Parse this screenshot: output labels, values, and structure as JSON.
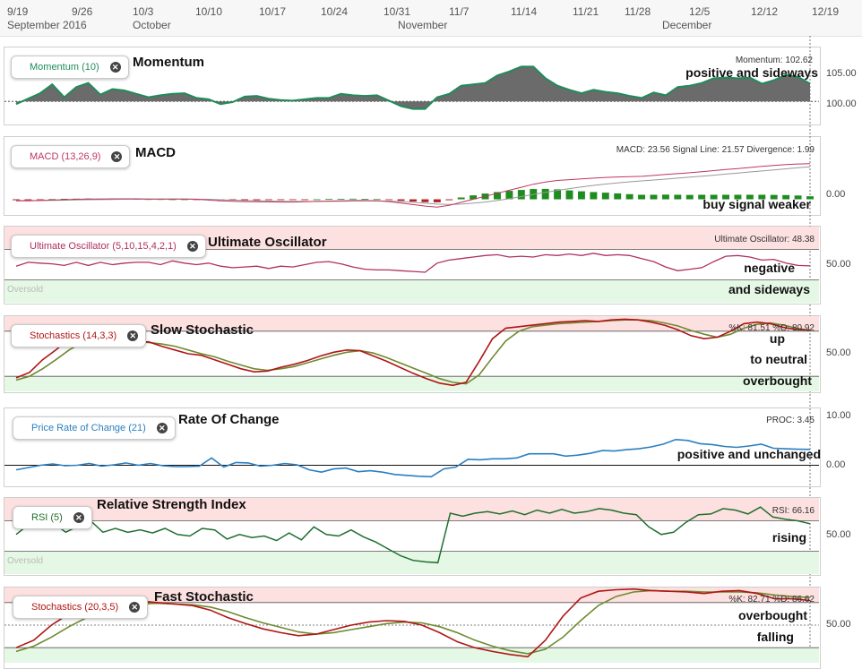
{
  "time_axis": {
    "dates": [
      "9/19",
      "9/26",
      "10/3",
      "10/10",
      "10/17",
      "10/24",
      "10/31",
      "11/7",
      "11/14",
      "11/21",
      "11/28",
      "12/5",
      "12/12",
      "12/19"
    ],
    "months": [
      "September 2016",
      "October",
      "November",
      "December"
    ]
  },
  "colors": {
    "momentum_fill": "#6b6b6b",
    "momentum_line": "#1f8c5a",
    "macd_line": "#c0365f",
    "signal_line": "#999999",
    "hist_neg": "#b22222",
    "hist_pos": "#1e8c1e",
    "uo_line": "#b03060",
    "stoch_k": "#b01515",
    "stoch_d": "#6f8a2f",
    "roc_line": "#2a7fc1",
    "rsi_line": "#1f6e2f",
    "overbought_zone": "#fde0e0",
    "oversold_zone": "#e5f8e5"
  },
  "panels": [
    {
      "id": "momentum",
      "pill": "Momentum (10)",
      "title": "Momentum",
      "readout": "Momentum: 102.62",
      "notes": [
        "positive and sideways"
      ],
      "ylabels": [
        "105.00",
        "100.00"
      ]
    },
    {
      "id": "macd",
      "pill": "MACD (13,26,9)",
      "title": "MACD",
      "readout": "MACD: 23.56 Signal Line: 21.57 Divergence: 1.99",
      "notes": [
        "buy signal weaker"
      ],
      "ylabels": [
        "0.00"
      ]
    },
    {
      "id": "uo",
      "pill": "Ultimate Oscillator (5,10,15,4,2,1)",
      "title": "Ultimate Oscillator",
      "readout": "Ultimate Oscillator: 48.38",
      "notes": [
        "negative",
        "and sideways"
      ],
      "ylabels": [
        "50.00"
      ],
      "zone_label": "Oversold"
    },
    {
      "id": "slowstoch",
      "pill": "Stochastics (14,3,3)",
      "title": "Slow Stochastic",
      "readout": "%K: 81.51 %D: 80.92",
      "notes": [
        "up",
        "to neutral",
        "overbought"
      ],
      "ylabels": [
        "50.00"
      ]
    },
    {
      "id": "roc",
      "pill": "Price Rate of Change (21)",
      "title": "Rate Of Change",
      "readout": "PROC: 3.45",
      "notes": [
        "positive and unchanged"
      ],
      "ylabels": [
        "10.00",
        "0.00"
      ]
    },
    {
      "id": "rsi",
      "pill": "RSI (5)",
      "title": "Relative Strength Index",
      "readout": "RSI: 66.16",
      "notes": [
        "rising"
      ],
      "ylabels": [
        "50.00"
      ],
      "zone_label": "Oversold"
    },
    {
      "id": "faststoch",
      "pill": "Stochastics (20,3,5)",
      "title": "Fast Stochastic",
      "readout": "%K: 82.71 %D: 86.62",
      "notes": [
        "overbought",
        "falling"
      ],
      "ylabels": [
        "50.00"
      ]
    }
  ],
  "chart_data": [
    {
      "type": "area",
      "name": "momentum",
      "ylim": [
        97,
        107
      ],
      "baseline": 100,
      "values": [
        99.6,
        100.4,
        101.2,
        102.5,
        100.6,
        102.1,
        102.7,
        101.0,
        101.8,
        101.6,
        101.1,
        100.6,
        100.9,
        101.1,
        101.2,
        100.5,
        100.3,
        99.6,
        99.9,
        100.7,
        100.8,
        100.4,
        100.2,
        100.1,
        100.3,
        100.5,
        100.5,
        101.1,
        100.9,
        100.8,
        100.9,
        100.1,
        99.3,
        98.9,
        98.9,
        100.6,
        101.1,
        102.3,
        102.5,
        102.7,
        103.8,
        104.4,
        105.1,
        105.1,
        103.4,
        102.3,
        101.7,
        101.2,
        101.7,
        101.4,
        101.2,
        100.8,
        100.5,
        101.3,
        100.9,
        102.1,
        102.3,
        102.7,
        103.4,
        103.5,
        103.4,
        103.5,
        102.6,
        103.1,
        103.9,
        103.6,
        102.6
      ]
    },
    {
      "type": "line",
      "name": "macd",
      "ylim": [
        -8,
        30
      ],
      "macd": [
        -1,
        -1,
        -0.8,
        -0.5,
        -0.3,
        0,
        0.2,
        0.2,
        0.3,
        0.3,
        0.3,
        0.2,
        0.2,
        0.2,
        0.2,
        0,
        -0.5,
        -1,
        -1.3,
        -1.5,
        -1.6,
        -1.7,
        -1.8,
        -1.8,
        -1.6,
        -1.4,
        -1.2,
        -1.0,
        -0.8,
        -0.8,
        -1.0,
        -1.5,
        -2.5,
        -3.5,
        -4.5,
        -5.2,
        -4,
        -2,
        0,
        2,
        4,
        6,
        8,
        10,
        11.5,
        12.5,
        13,
        13.5,
        14,
        14.5,
        14.8,
        15,
        15.2,
        15.8,
        16.5,
        17,
        17.6,
        18.3,
        19,
        19.7,
        20.4,
        21.1,
        21.8,
        22.4,
        23,
        23.4,
        23.56
      ],
      "signal": [
        -0.8,
        -0.8,
        -0.8,
        -0.7,
        -0.6,
        -0.4,
        -0.3,
        -0.2,
        -0.1,
        0,
        0.1,
        0.1,
        0.1,
        0.2,
        0.2,
        0.1,
        0,
        -0.3,
        -0.6,
        -0.8,
        -1,
        -1.2,
        -1.3,
        -1.4,
        -1.4,
        -1.4,
        -1.4,
        -1.3,
        -1.2,
        -1.1,
        -1.1,
        -1.2,
        -1.5,
        -2,
        -2.6,
        -3.2,
        -3.4,
        -3.2,
        -2.6,
        -1.8,
        -0.8,
        0.4,
        1.8,
        3.2,
        4.6,
        5.9,
        7.1,
        8.2,
        9.2,
        10.1,
        10.9,
        11.6,
        12.2,
        12.8,
        13.4,
        14,
        14.7,
        15.3,
        16,
        16.7,
        17.4,
        18.1,
        18.8,
        19.5,
        20.2,
        20.9,
        21.57
      ],
      "divergence": [
        -0.6,
        -0.6,
        -0.4,
        0.1,
        0.3,
        0.4,
        0.5,
        0.4,
        0.4,
        0.3,
        0.2,
        0.1,
        0.1,
        0,
        0,
        -0.1,
        -0.5,
        -0.7,
        -0.7,
        -0.7,
        -0.6,
        -0.5,
        -0.5,
        -0.4,
        -0.2,
        0,
        0.2,
        0.3,
        0.4,
        0.3,
        0.1,
        -0.3,
        -1,
        -1.5,
        -1.9,
        -2,
        -0.6,
        1.2,
        2.6,
        3.8,
        4.8,
        5.6,
        6.2,
        6.8,
        6.9,
        6.6,
        5.9,
        5.3,
        4.8,
        4.4,
        3.9,
        3.4,
        3,
        3,
        3.1,
        3,
        2.9,
        3,
        3,
        3,
        3,
        3,
        3,
        2.9,
        2.8,
        2.5,
        1.99
      ]
    },
    {
      "type": "line",
      "name": "ultimate_oscillator",
      "ylim": [
        0,
        100
      ],
      "values": [
        48,
        53,
        52,
        51,
        49,
        53,
        49,
        53,
        50,
        52,
        53,
        53,
        50,
        55,
        52,
        50,
        52,
        48,
        46,
        47,
        48,
        45,
        48,
        47,
        50,
        53,
        54,
        51,
        47,
        44,
        43,
        43,
        42,
        41,
        40,
        52,
        56,
        58,
        60,
        62,
        63,
        60,
        61,
        60,
        63,
        62,
        64,
        62,
        65,
        62,
        63,
        62,
        58,
        54,
        47,
        42,
        44,
        46,
        54,
        61,
        62,
        60,
        56,
        57,
        52,
        49,
        48.38
      ]
    },
    {
      "type": "line",
      "name": "slow_stochastic",
      "ylim": [
        0,
        100
      ],
      "k": [
        18,
        25,
        42,
        55,
        70,
        72,
        70,
        66,
        68,
        64,
        66,
        60,
        55,
        50,
        48,
        42,
        36,
        30,
        26,
        27,
        32,
        36,
        41,
        47,
        52,
        55,
        54,
        47,
        40,
        32,
        24,
        17,
        11,
        8,
        12,
        40,
        70,
        84,
        86,
        88,
        90,
        92,
        93,
        94,
        93,
        95,
        96,
        95,
        92,
        88,
        82,
        74,
        70,
        72,
        80,
        90,
        92,
        90,
        85,
        82,
        81.51
      ],
      "d": [
        15,
        20,
        30,
        42,
        55,
        65,
        70,
        68,
        67,
        66,
        65,
        63,
        60,
        55,
        50,
        46,
        40,
        35,
        30,
        28,
        30,
        33,
        38,
        43,
        48,
        52,
        54,
        51,
        45,
        38,
        31,
        24,
        17,
        12,
        10,
        22,
        45,
        67,
        80,
        86,
        88,
        90,
        91,
        92,
        93,
        94,
        95,
        95,
        94,
        91,
        87,
        81,
        76,
        72,
        76,
        84,
        89,
        91,
        88,
        84,
        80.92
      ]
    },
    {
      "type": "line",
      "name": "price_rate_of_change",
      "ylim": [
        -4,
        12
      ],
      "values": [
        -1,
        -0.5,
        0,
        0.3,
        -0.1,
        0,
        0.4,
        -0.2,
        0.1,
        0.5,
        0,
        0.4,
        -0.1,
        -0.3,
        -0.3,
        -0.2,
        1.6,
        -0.4,
        0.6,
        0.5,
        -0.2,
        0,
        0.4,
        0.1,
        -1,
        -1.5,
        -0.8,
        -0.6,
        -1.4,
        -1.2,
        -1.5,
        -2.0,
        -2.2,
        -2.4,
        -2.5,
        -0.8,
        -0.4,
        1.3,
        1.2,
        1.4,
        1.4,
        1.6,
        2.5,
        2.5,
        2.5,
        2.0,
        2.2,
        2.6,
        3.2,
        3.1,
        3.4,
        3.6,
        4.0,
        4.6,
        5.6,
        5.4,
        4.7,
        4.5,
        4.1,
        3.9,
        4.2,
        4.6,
        3.7,
        3.6,
        3.5,
        3.45
      ]
    },
    {
      "type": "line",
      "name": "rsi",
      "ylim": [
        0,
        100
      ],
      "values": [
        52,
        65,
        64,
        67,
        55,
        63,
        70,
        55,
        60,
        55,
        58,
        54,
        60,
        52,
        50,
        60,
        58,
        46,
        52,
        48,
        50,
        44,
        54,
        45,
        62,
        52,
        50,
        58,
        49,
        42,
        33,
        24,
        18,
        16,
        15,
        80,
        76,
        80,
        82,
        79,
        83,
        78,
        84,
        80,
        85,
        80,
        82,
        86,
        84,
        80,
        78,
        62,
        52,
        55,
        68,
        78,
        79,
        86,
        84,
        79,
        88,
        75,
        72,
        70,
        66.16
      ]
    },
    {
      "type": "line",
      "name": "fast_stochastic",
      "ylim": [
        0,
        100
      ],
      "k": [
        20,
        30,
        50,
        65,
        72,
        78,
        80,
        82,
        80,
        78,
        76,
        70,
        60,
        52,
        45,
        40,
        36,
        38,
        44,
        50,
        54,
        56,
        55,
        50,
        40,
        28,
        20,
        15,
        11,
        8,
        30,
        62,
        86,
        95,
        97,
        98,
        96,
        95,
        94,
        92,
        95,
        96,
        92,
        85,
        85,
        82.71
      ],
      "d": [
        15,
        22,
        34,
        48,
        60,
        68,
        74,
        78,
        79,
        78,
        77,
        74,
        68,
        60,
        53,
        47,
        41,
        38,
        40,
        44,
        48,
        52,
        54,
        53,
        48,
        40,
        30,
        22,
        16,
        12,
        18,
        34,
        56,
        76,
        88,
        94,
        96,
        95,
        95,
        94,
        94,
        94,
        93,
        90,
        88,
        86.62
      ]
    }
  ]
}
